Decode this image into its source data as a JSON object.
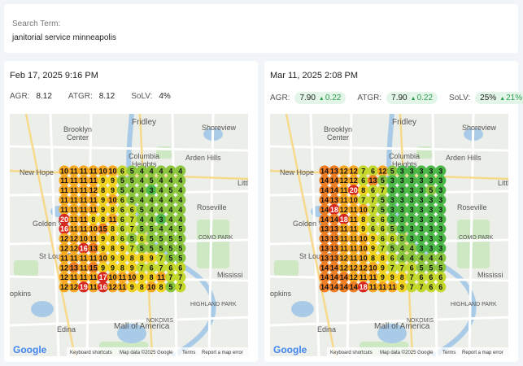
{
  "search": {
    "label": "Search Term:",
    "term": "janitorial service minneapolis"
  },
  "panels": [
    {
      "date": "Feb 17, 2025 9:16 PM",
      "metrics": [
        {
          "label": "AGR:",
          "value": "8.12"
        },
        {
          "label": "ATGR:",
          "value": "8.12"
        },
        {
          "label": "SoLV:",
          "value": "4%"
        }
      ],
      "grid": [
        [
          10,
          11,
          11,
          11,
          10,
          10,
          6,
          5,
          4,
          4,
          4,
          4,
          4
        ],
        [
          11,
          11,
          11,
          11,
          9,
          9,
          5,
          5,
          4,
          5,
          4,
          4,
          4
        ],
        [
          11,
          11,
          11,
          12,
          8,
          9,
          5,
          4,
          4,
          3,
          4,
          5,
          4
        ],
        [
          11,
          11,
          11,
          11,
          9,
          10,
          6,
          5,
          4,
          4,
          4,
          4,
          4
        ],
        [
          11,
          11,
          11,
          11,
          9,
          8,
          6,
          6,
          5,
          4,
          4,
          4,
          4
        ],
        [
          20,
          11,
          11,
          8,
          8,
          11,
          6,
          7,
          4,
          4,
          3,
          4,
          4
        ],
        [
          16,
          11,
          11,
          10,
          15,
          8,
          6,
          7,
          5,
          5,
          4,
          4,
          5
        ],
        [
          12,
          12,
          10,
          11,
          9,
          8,
          6,
          5,
          6,
          5,
          5,
          5,
          5
        ],
        [
          12,
          12,
          16,
          13,
          9,
          8,
          9,
          7,
          5,
          5,
          5,
          5,
          5
        ],
        [
          11,
          11,
          11,
          11,
          10,
          9,
          9,
          8,
          8,
          9,
          7,
          5,
          5
        ],
        [
          12,
          13,
          11,
          15,
          9,
          9,
          8,
          9,
          7,
          6,
          7,
          6,
          6
        ],
        [
          12,
          11,
          11,
          11,
          17,
          10,
          11,
          10,
          9,
          8,
          11,
          7,
          7
        ],
        [
          12,
          12,
          19,
          11,
          16,
          12,
          11,
          9,
          8,
          10,
          8,
          5,
          7
        ]
      ]
    },
    {
      "date": "Mar 11, 2025 2:08 PM",
      "metrics": [
        {
          "label": "AGR:",
          "value": "7.90",
          "change": "0.22"
        },
        {
          "label": "ATGR:",
          "value": "7.90",
          "change": "0.22"
        },
        {
          "label": "SoLV:",
          "value": "25%",
          "change": "21%"
        }
      ],
      "grid": [
        [
          14,
          13,
          12,
          12,
          7,
          6,
          12,
          5,
          3,
          3,
          3,
          3,
          3
        ],
        [
          14,
          14,
          12,
          12,
          6,
          13,
          5,
          3,
          3,
          3,
          3,
          3,
          3
        ],
        [
          14,
          14,
          11,
          20,
          8,
          6,
          7,
          3,
          3,
          3,
          3,
          5,
          3
        ],
        [
          14,
          13,
          11,
          10,
          7,
          7,
          5,
          3,
          3,
          3,
          3,
          3,
          3
        ],
        [
          14,
          18,
          12,
          11,
          10,
          7,
          5,
          3,
          3,
          3,
          3,
          3,
          3
        ],
        [
          14,
          14,
          18,
          11,
          8,
          6,
          6,
          3,
          3,
          3,
          3,
          3,
          3
        ],
        [
          13,
          13,
          11,
          11,
          9,
          6,
          6,
          5,
          3,
          3,
          3,
          3,
          3
        ],
        [
          13,
          13,
          11,
          11,
          10,
          9,
          6,
          6,
          5,
          3,
          3,
          3,
          3
        ],
        [
          13,
          13,
          11,
          11,
          10,
          9,
          7,
          5,
          4,
          4,
          3,
          3,
          3
        ],
        [
          13,
          13,
          12,
          11,
          10,
          8,
          8,
          6,
          4,
          4,
          4,
          4,
          4
        ],
        [
          14,
          14,
          12,
          12,
          12,
          10,
          9,
          7,
          7,
          6,
          5,
          5,
          5
        ],
        [
          14,
          14,
          14,
          12,
          11,
          11,
          9,
          9,
          8,
          7,
          6,
          6,
          6
        ],
        [
          14,
          14,
          14,
          14,
          18,
          11,
          11,
          11,
          9,
          7,
          7,
          6,
          6
        ]
      ]
    }
  ],
  "map": {
    "labels": [
      "Fridley",
      "Shoreview",
      "Brooklyn",
      "Center",
      "Columbia",
      "Heights",
      "Arden Hills",
      "New Hope",
      "Golden Val",
      "Roseville",
      "COMO PARK",
      "St Louis Park",
      "Mississi",
      "Edina",
      "Mall of America",
      "NOKOMIS",
      "HIGHLAND PARK",
      "Littl",
      "opkins"
    ],
    "attribution": {
      "logo": "Google",
      "shortcuts": "Keyboard shortcuts",
      "data": "Map data ©2025 Google",
      "terms": "Terms",
      "report": "Report a map error"
    }
  }
}
